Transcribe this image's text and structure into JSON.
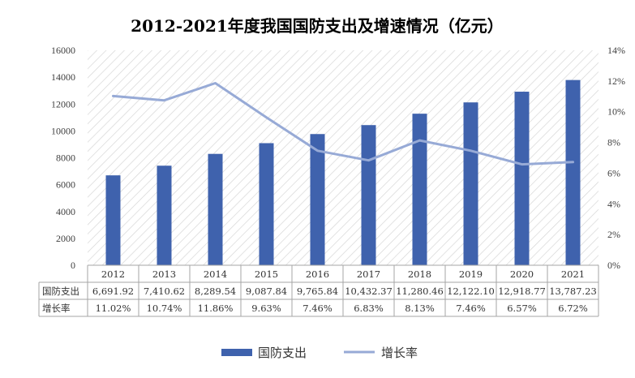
{
  "title": "2012-2021年度我国国防支出及增速情况（亿元）",
  "chart_data": {
    "type": "bar",
    "title": "2012-2021年度我国国防支出及增速情况（亿元）",
    "categories": [
      "2012",
      "2013",
      "2014",
      "2015",
      "2016",
      "2017",
      "2018",
      "2019",
      "2020",
      "2021"
    ],
    "series": [
      {
        "name": "国防支出",
        "type": "bar",
        "axis": "left",
        "values": [
          6691.92,
          7410.62,
          8289.54,
          9087.84,
          9765.84,
          10432.37,
          11280.46,
          12122.1,
          12918.77,
          13787.23
        ],
        "labels": [
          "6,691.92",
          "7,410.62",
          "8,289.54",
          "9,087.84",
          "9,765.84",
          "10,432.37",
          "11,280.46",
          "12,122.10",
          "12,918.77",
          "13,787.23"
        ],
        "color": "#3f62ad"
      },
      {
        "name": "增长率",
        "type": "line",
        "axis": "right",
        "values": [
          11.02,
          10.74,
          11.86,
          9.63,
          7.46,
          6.83,
          8.13,
          7.46,
          6.57,
          6.72
        ],
        "labels": [
          "11.02%",
          "10.74%",
          "11.86%",
          "9.63%",
          "7.46%",
          "6.83%",
          "8.13%",
          "7.46%",
          "6.57%",
          "6.72%"
        ],
        "color": "#97aad6"
      }
    ],
    "y_left": {
      "min": 0,
      "max": 16000,
      "ticks": [
        "0",
        "2000",
        "4000",
        "6000",
        "8000",
        "10000",
        "12000",
        "14000",
        "16000"
      ]
    },
    "y_right": {
      "min": 0,
      "max": 14,
      "ticks": [
        "0%",
        "2%",
        "4%",
        "6%",
        "8%",
        "10%",
        "12%",
        "14%"
      ]
    },
    "legend": [
      "国防支出",
      "增长率"
    ],
    "legend_position": "bottom",
    "data_table": true,
    "background": "diagonal-hatch",
    "grid": false
  }
}
